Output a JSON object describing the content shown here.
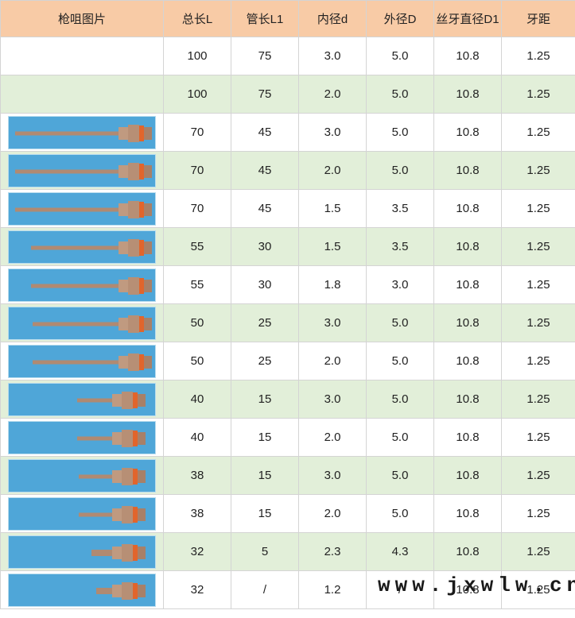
{
  "headers": [
    "枪咀图片",
    "总长L",
    "管长L1",
    "内径d",
    "外径D",
    "丝牙直径D1",
    "牙距"
  ],
  "rows": [
    {
      "L": "100",
      "L1": "75",
      "d": "3.0",
      "D": "5.0",
      "D1": "10.8",
      "pitch": "1.25",
      "image": "none"
    },
    {
      "L": "100",
      "L1": "75",
      "d": "2.0",
      "D": "5.0",
      "D1": "10.8",
      "pitch": "1.25",
      "image": "none"
    },
    {
      "L": "70",
      "L1": "45",
      "d": "3.0",
      "D": "5.0",
      "D1": "10.8",
      "pitch": "1.25",
      "image": "nozzle"
    },
    {
      "L": "70",
      "L1": "45",
      "d": "2.0",
      "D": "5.0",
      "D1": "10.8",
      "pitch": "1.25",
      "image": "nozzle"
    },
    {
      "L": "70",
      "L1": "45",
      "d": "1.5",
      "D": "3.5",
      "D1": "10.8",
      "pitch": "1.25",
      "image": "nozzle"
    },
    {
      "L": "55",
      "L1": "30",
      "d": "1.5",
      "D": "3.5",
      "D1": "10.8",
      "pitch": "1.25",
      "image": "nozzle"
    },
    {
      "L": "55",
      "L1": "30",
      "d": "1.8",
      "D": "3.0",
      "D1": "10.8",
      "pitch": "1.25",
      "image": "nozzle"
    },
    {
      "L": "50",
      "L1": "25",
      "d": "3.0",
      "D": "5.0",
      "D1": "10.8",
      "pitch": "1.25",
      "image": "nozzle"
    },
    {
      "L": "50",
      "L1": "25",
      "d": "2.0",
      "D": "5.0",
      "D1": "10.8",
      "pitch": "1.25",
      "image": "nozzle"
    },
    {
      "L": "40",
      "L1": "15",
      "d": "3.0",
      "D": "5.0",
      "D1": "10.8",
      "pitch": "1.25",
      "image": "nozzle"
    },
    {
      "L": "40",
      "L1": "15",
      "d": "2.0",
      "D": "5.0",
      "D1": "10.8",
      "pitch": "1.25",
      "image": "nozzle"
    },
    {
      "L": "38",
      "L1": "15",
      "d": "3.0",
      "D": "5.0",
      "D1": "10.8",
      "pitch": "1.25",
      "image": "nozzle"
    },
    {
      "L": "38",
      "L1": "15",
      "d": "2.0",
      "D": "5.0",
      "D1": "10.8",
      "pitch": "1.25",
      "image": "nozzle"
    },
    {
      "L": "32",
      "L1": "5",
      "d": "2.3",
      "D": "4.3",
      "D1": "10.8",
      "pitch": "1.25",
      "image": "nozzle"
    },
    {
      "L": "32",
      "L1": "/",
      "d": "1.2",
      "D": "/",
      "D1": "10.8",
      "pitch": "1.25",
      "image": "nozzle"
    }
  ],
  "watermark": "www.jxwlw.cn",
  "colors": {
    "header_bg": "#f8cba6",
    "alt_row_bg": "#e2efd9",
    "thumb_bg": "#4fa6d8"
  }
}
